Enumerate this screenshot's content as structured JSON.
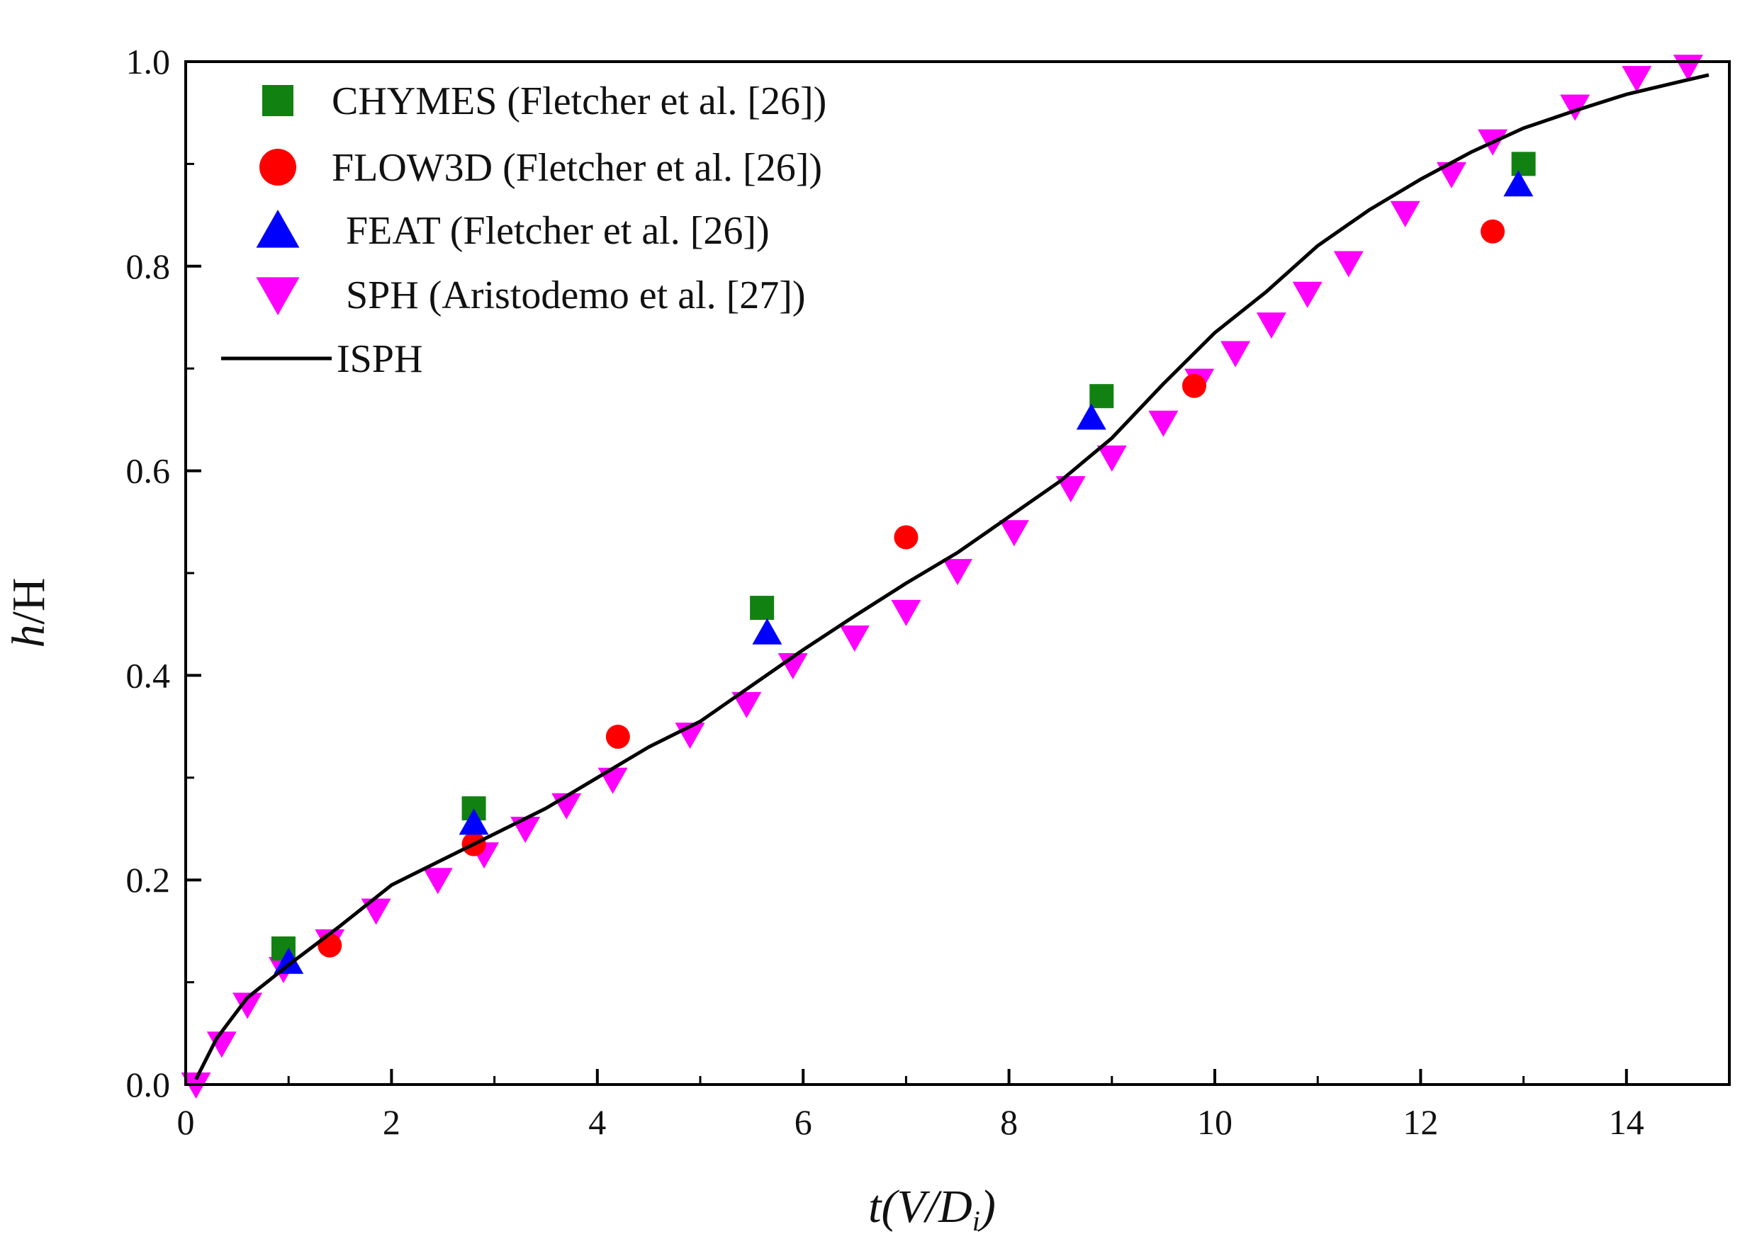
{
  "chart_data": {
    "type": "scatter",
    "title": "",
    "xlabel": {
      "main": "t(V/D",
      "sub": "i",
      "close": ")"
    },
    "ylabel": {
      "italic": "h",
      "rest": "/H"
    },
    "xlim": [
      0,
      15
    ],
    "ylim": [
      0,
      1.0
    ],
    "x_ticks": [
      "0",
      "2",
      "4",
      "6",
      "8",
      "10",
      "12",
      "14"
    ],
    "y_ticks": [
      "0.0",
      "0.2",
      "0.4",
      "0.6",
      "0.8",
      "1.0"
    ],
    "legend_position": "top-left",
    "series": [
      {
        "name": "CHYMES (Fletcher et al. [26])",
        "marker": "square",
        "color": "#118211",
        "x": [
          0.95,
          2.8,
          5.6,
          8.9,
          13.0
        ],
        "y": [
          0.133,
          0.27,
          0.466,
          0.673,
          0.9
        ]
      },
      {
        "name": "FLOW3D (Fletcher et al. [26])",
        "marker": "circle",
        "color": "#ff0000",
        "x": [
          1.4,
          2.8,
          4.2,
          7.0,
          9.8,
          12.7
        ],
        "y": [
          0.136,
          0.235,
          0.34,
          0.535,
          0.683,
          0.834
        ]
      },
      {
        "name": "FEAT (Fletcher et al. [26])",
        "marker": "triangle-up",
        "color": "#0000ff",
        "x": [
          1.0,
          2.8,
          5.65,
          8.8,
          12.95
        ],
        "y": [
          0.12,
          0.256,
          0.442,
          0.652,
          0.88
        ]
      },
      {
        "name": "SPH (Aristodemo et al. [27])",
        "marker": "triangle-down",
        "color": "#ff00ff",
        "x": [
          0.1,
          0.35,
          0.6,
          0.95,
          1.4,
          1.85,
          2.45,
          2.9,
          3.3,
          3.7,
          4.15,
          4.9,
          5.45,
          5.9,
          6.5,
          7.0,
          7.5,
          8.05,
          8.6,
          9.0,
          9.5,
          9.85,
          10.2,
          10.55,
          10.9,
          11.3,
          11.85,
          12.3,
          12.7,
          13.5,
          14.1,
          14.6
        ],
        "y": [
          0.0,
          0.04,
          0.078,
          0.113,
          0.14,
          0.17,
          0.2,
          0.225,
          0.25,
          0.273,
          0.298,
          0.342,
          0.372,
          0.41,
          0.437,
          0.462,
          0.502,
          0.54,
          0.583,
          0.613,
          0.647,
          0.688,
          0.715,
          0.743,
          0.773,
          0.803,
          0.852,
          0.89,
          0.922,
          0.956,
          0.984,
          0.995
        ]
      },
      {
        "name": "ISPH",
        "marker": "line",
        "color": "#000000",
        "x": [
          0.1,
          0.3,
          0.6,
          1.0,
          1.5,
          2.0,
          2.5,
          3.0,
          3.5,
          4.0,
          4.5,
          5.0,
          5.5,
          6.0,
          6.5,
          7.0,
          7.5,
          8.0,
          8.5,
          9.0,
          9.5,
          10.0,
          10.5,
          11.0,
          11.5,
          12.0,
          12.5,
          13.0,
          13.5,
          14.0,
          14.5,
          14.8
        ],
        "y": [
          0.005,
          0.045,
          0.085,
          0.117,
          0.155,
          0.195,
          0.22,
          0.245,
          0.27,
          0.3,
          0.33,
          0.355,
          0.39,
          0.425,
          0.458,
          0.49,
          0.52,
          0.555,
          0.59,
          0.632,
          0.685,
          0.735,
          0.775,
          0.82,
          0.855,
          0.885,
          0.912,
          0.935,
          0.952,
          0.968,
          0.98,
          0.987
        ]
      }
    ]
  }
}
